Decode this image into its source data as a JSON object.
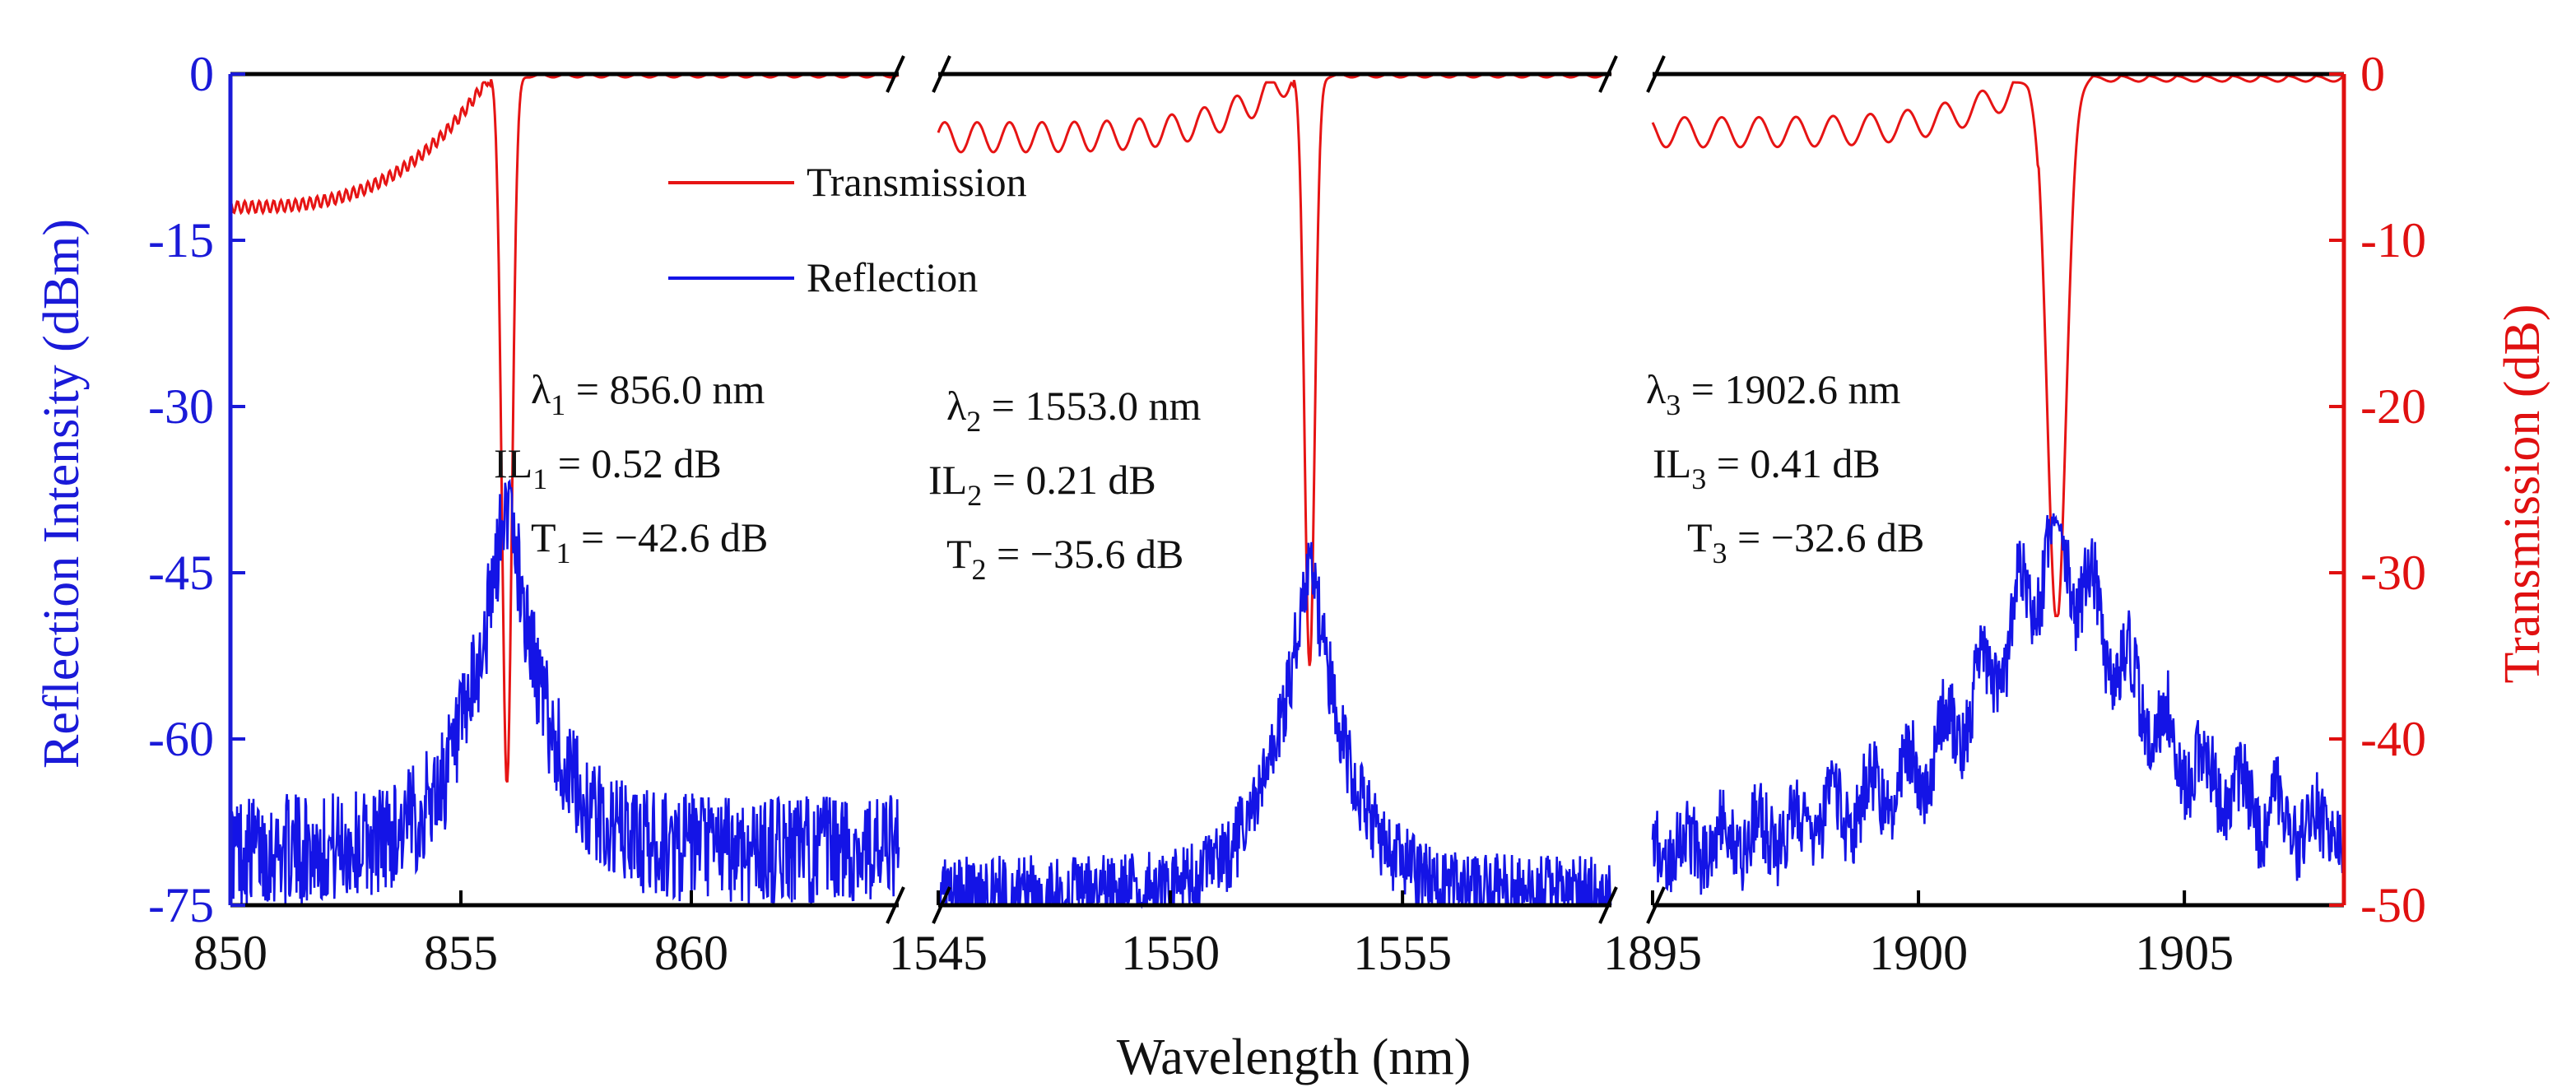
{
  "chart_data": {
    "type": "line",
    "xlabel": "Wavelength (nm)",
    "ylabel_left": "Reflection Intensity (dBm)",
    "ylabel_right": "Transmission (dB)",
    "ylim_left": [
      -75,
      0
    ],
    "ylim_right": [
      -50,
      0
    ],
    "yticks_left": [
      0,
      -15,
      -30,
      -45,
      -60,
      -75
    ],
    "yticks_right": [
      0,
      -10,
      -20,
      -30,
      -40,
      -50
    ],
    "ytick_labels_left": [
      "0",
      "-15",
      "-30",
      "-45",
      "-60",
      "-75"
    ],
    "ytick_labels_right": [
      "0",
      "-10",
      "-20",
      "-30",
      "-40",
      "-50"
    ],
    "x_tick_labels": [
      "850",
      "855",
      "860",
      "1545",
      "1550",
      "1555",
      "1895",
      "1900",
      "1905"
    ],
    "broken_axis": true,
    "colors": {
      "reflection": "#1414e6",
      "transmission": "#e61414",
      "left_axis": "#1a1ad8",
      "right_axis": "#e01010",
      "axis": "#000000"
    },
    "legend": [
      {
        "label": "Transmission",
        "series": "transmission"
      },
      {
        "label": "Reflection",
        "series": "reflection"
      }
    ],
    "segments": [
      {
        "xlim": [
          850,
          864.5
        ],
        "xticks": [
          850,
          855,
          860
        ],
        "peak_wavelength": 856.0,
        "reflection_peak_dbm": -38,
        "reflection_floor_dbm": -70,
        "transmission_dip_db": -42.6,
        "transmission_baseline_start_db": -8.0,
        "annotation": {
          "lambda_sub": "1",
          "lambda_value": " = 856.0 nm",
          "il_sub": "1",
          "il_value": " = 0.52 dB",
          "t_sub": "1",
          "t_value": " = −42.6 dB"
        }
      },
      {
        "xlim": [
          1545,
          1559.5
        ],
        "xticks": [
          1545,
          1550,
          1555
        ],
        "peak_wavelength": 1553.0,
        "reflection_peak_dbm": -43.5,
        "reflection_floor_dbm": -74,
        "transmission_dip_db": -35.6,
        "transmission_baseline_start_db": -3.8,
        "annotation": {
          "lambda_sub": "2",
          "lambda_value": " = 1553.0 nm",
          "il_sub": "2",
          "il_value": " = 0.21 dB",
          "t_sub": "2",
          "t_value": " = −35.6 dB"
        }
      },
      {
        "xlim": [
          1895,
          1908
        ],
        "xticks": [
          1895,
          1900,
          1905
        ],
        "peak_wavelength": 1902.6,
        "reflection_peak_dbm": -41,
        "reflection_floor_dbm": -70,
        "transmission_dip_db": -32.6,
        "transmission_baseline_start_db": -3.5,
        "annotation": {
          "lambda_sub": "3",
          "lambda_value": " = 1902.6 nm",
          "il_sub": "3",
          "il_value": " = 0.41 dB",
          "t_sub": "3",
          "t_value": " = −32.6 dB"
        }
      }
    ]
  },
  "annotation_labels": {
    "lambda": "λ",
    "il": "IL",
    "t": "T"
  }
}
